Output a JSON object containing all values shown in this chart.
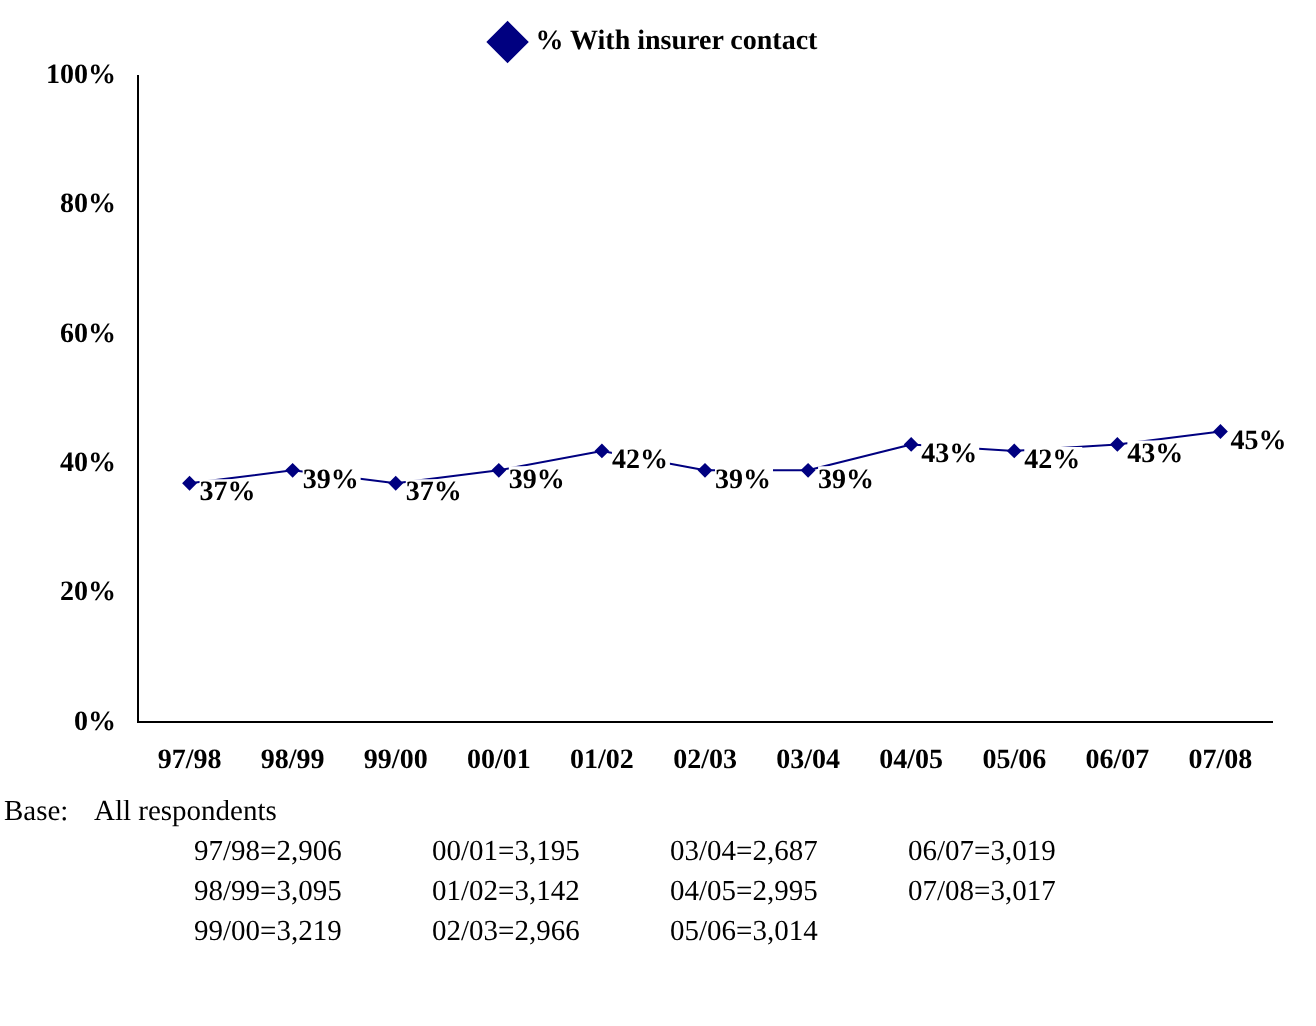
{
  "chart_data": {
    "type": "line",
    "categories": [
      "97/98",
      "98/99",
      "99/00",
      "00/01",
      "01/02",
      "02/03",
      "03/04",
      "04/05",
      "05/06",
      "06/07",
      "07/08"
    ],
    "series": [
      {
        "name": "% With insurer contact",
        "color": "#000080",
        "values": [
          37,
          39,
          37,
          39,
          42,
          39,
          39,
          43,
          42,
          43,
          45
        ]
      }
    ],
    "ylim": [
      0,
      100
    ],
    "yticks": [
      {
        "value": 0,
        "label": "0%"
      },
      {
        "value": 20,
        "label": "20%"
      },
      {
        "value": 40,
        "label": "40%"
      },
      {
        "value": 60,
        "label": "60%"
      },
      {
        "value": 80,
        "label": "80%"
      },
      {
        "value": 100,
        "label": "100%"
      }
    ],
    "value_labels": [
      "37%",
      "39%",
      "37%",
      "39%",
      "42%",
      "39%",
      "39%",
      "43%",
      "42%",
      "43%",
      "45%"
    ],
    "marker": "diamond",
    "legend": "top",
    "grid": false,
    "annotations": [
      "Base:",
      "All respondents",
      "97/98=2,906",
      "98/99=3,095",
      "99/00=3,219",
      "00/01=3,195",
      "01/02=3,142",
      "02/03=2,966",
      "03/04=2,687",
      "04/05=2,995",
      "05/06=3,014",
      "06/07=3,019",
      "07/08=3,017"
    ]
  }
}
